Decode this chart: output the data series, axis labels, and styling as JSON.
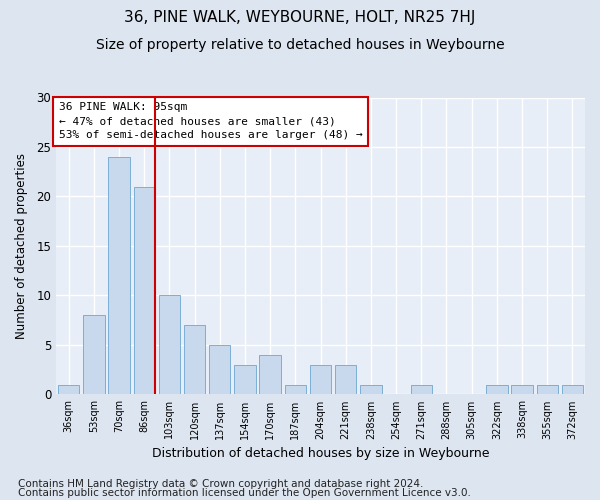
{
  "title": "36, PINE WALK, WEYBOURNE, HOLT, NR25 7HJ",
  "subtitle": "Size of property relative to detached houses in Weybourne",
  "xlabel": "Distribution of detached houses by size in Weybourne",
  "ylabel": "Number of detached properties",
  "categories": [
    "36sqm",
    "53sqm",
    "70sqm",
    "86sqm",
    "103sqm",
    "120sqm",
    "137sqm",
    "154sqm",
    "170sqm",
    "187sqm",
    "204sqm",
    "221sqm",
    "238sqm",
    "254sqm",
    "271sqm",
    "288sqm",
    "305sqm",
    "322sqm",
    "338sqm",
    "355sqm",
    "372sqm"
  ],
  "values": [
    1,
    8,
    24,
    21,
    10,
    7,
    5,
    3,
    4,
    1,
    3,
    3,
    1,
    0,
    1,
    0,
    0,
    1,
    1,
    1,
    1
  ],
  "bar_color": "#c8d8ed",
  "bar_edge_color": "#7bafd4",
  "vline_color": "#cc0000",
  "annotation_text": "36 PINE WALK: 95sqm\n← 47% of detached houses are smaller (43)\n53% of semi-detached houses are larger (48) →",
  "annotation_box_edge": "#cc0000",
  "ylim": [
    0,
    30
  ],
  "yticks": [
    0,
    5,
    10,
    15,
    20,
    25,
    30
  ],
  "footer1": "Contains HM Land Registry data © Crown copyright and database right 2024.",
  "footer2": "Contains public sector information licensed under the Open Government Licence v3.0.",
  "bg_color": "#dde5f0",
  "plot_bg_color": "#e8eef7",
  "title_fontsize": 11,
  "subtitle_fontsize": 10,
  "footer_fontsize": 7.5
}
